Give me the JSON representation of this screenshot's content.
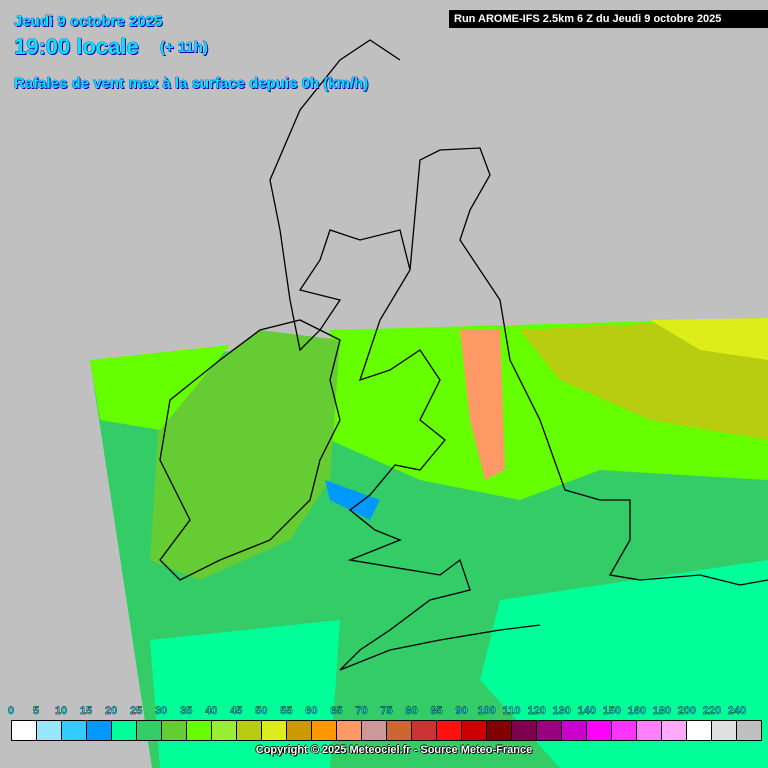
{
  "header": {
    "date": "Jeudi 9 octobre 2025",
    "time": "19:00 locale",
    "offset": "(+ 11h)",
    "parameter": "Rafales de vent max à la surface depuis 0h (km/h)",
    "run": "Run AROME-IFS 2.5km 6 Z du Jeudi 9 octobre 2025"
  },
  "legend": {
    "labels": [
      "0",
      "5",
      "10",
      "15",
      "20",
      "25",
      "30",
      "35",
      "40",
      "45",
      "50",
      "55",
      "60",
      "65",
      "70",
      "75",
      "80",
      "85",
      "90",
      "100",
      "110",
      "120",
      "130",
      "140",
      "150",
      "160",
      "180",
      "200",
      "220",
      "240"
    ],
    "colors": [
      "#ffffff",
      "#99e6ff",
      "#33ccff",
      "#0099ff",
      "#00ff99",
      "#33cc66",
      "#66cc33",
      "#66ff00",
      "#99ee33",
      "#b8cc10",
      "#dded1a",
      "#cc9900",
      "#ff9900",
      "#ff9966",
      "#cc9999",
      "#cc6633",
      "#cc3333",
      "#ff1111",
      "#cc0000",
      "#800000",
      "#800050",
      "#990080",
      "#cc00cc",
      "#ff00ff",
      "#ff33ff",
      "#ff80ff",
      "#ffaaff",
      "#ffffff",
      "#e0e0e0",
      "#c0c0c0"
    ]
  },
  "footer": {
    "copyright": "Copyright © 2025 Meteociel.fr - Source Meteo-France"
  }
}
